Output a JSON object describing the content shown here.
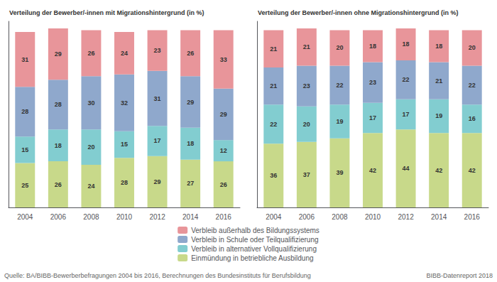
{
  "chart_data": [
    {
      "type": "bar",
      "title": "Verteilung der Bewerber/-innen mit Migrationshintergrund (in %)",
      "categories": [
        "2004",
        "2006",
        "2008",
        "2010",
        "2012",
        "2014",
        "2016"
      ],
      "series": [
        {
          "name": "Einmündung in betriebliche Ausbildung",
          "color": "#c8d98a",
          "values": [
            25,
            26,
            24,
            28,
            29,
            27,
            26
          ]
        },
        {
          "name": "Verbleib in alternativer Vollqualifizierung",
          "color": "#82cdd0",
          "values": [
            15,
            18,
            20,
            15,
            17,
            18,
            12
          ]
        },
        {
          "name": "Verbleib in Schule oder Teilqualifizierung",
          "color": "#8fa8cc",
          "values": [
            28,
            28,
            30,
            32,
            31,
            29,
            29
          ]
        },
        {
          "name": "Verbleib außerhalb des Bildungssystems",
          "color": "#e8959a",
          "values": [
            31,
            29,
            26,
            24,
            23,
            26,
            33
          ]
        }
      ],
      "ylim": [
        0,
        105
      ],
      "stacked": true,
      "data_labels": true,
      "tick_labels": "x",
      "grid": false,
      "legend": "bottom",
      "annotations": [
        "Quelle: BA/BIBB-Bewerberbefragungen 2004 bis 2016, Berechnungen des Bundesinstituts für Berufsbildung",
        "BIBB-Datenreport 2018"
      ]
    },
    {
      "type": "bar",
      "title": "Verteilung der Bewerber/-innen ohne Migrationshintergrund (in %)",
      "categories": [
        "2004",
        "2006",
        "2008",
        "2010",
        "2012",
        "2014",
        "2016"
      ],
      "series": [
        {
          "name": "Einmündung in betriebliche Ausbildung",
          "color": "#c8d98a",
          "values": [
            36,
            37,
            39,
            42,
            44,
            42,
            42
          ]
        },
        {
          "name": "Verbleib in alternativer Vollqualifizierung",
          "color": "#82cdd0",
          "values": [
            22,
            20,
            19,
            17,
            17,
            19,
            16
          ]
        },
        {
          "name": "Verbleib in Schule oder Teilqualifizierung",
          "color": "#8fa8cc",
          "values": [
            21,
            23,
            22,
            23,
            22,
            21,
            22
          ]
        },
        {
          "name": "Verbleib außerhalb des Bildungssystems",
          "color": "#e8959a",
          "values": [
            21,
            21,
            20,
            18,
            18,
            18,
            20
          ]
        }
      ],
      "ylim": [
        0,
        105
      ],
      "stacked": true,
      "data_labels": true,
      "tick_labels": "x",
      "grid": false,
      "legend": "bottom"
    }
  ]
}
